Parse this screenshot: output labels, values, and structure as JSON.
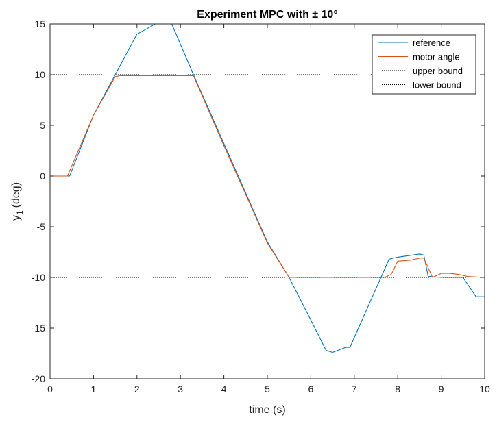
{
  "chart_data": {
    "type": "line",
    "title": "Experiment MPC with ± 10°",
    "xlabel": "time (s)",
    "ylabel_main": "y",
    "ylabel_sub": "1",
    "ylabel_unit": "(deg)",
    "xlim": [
      0,
      10
    ],
    "ylim": [
      -20,
      15
    ],
    "xticks": [
      0,
      1,
      2,
      3,
      4,
      5,
      6,
      7,
      8,
      9,
      10
    ],
    "yticks": [
      -20,
      -15,
      -10,
      -5,
      0,
      5,
      10,
      15
    ],
    "grid": false,
    "legend_position": "top-right",
    "series": [
      {
        "name": "reference",
        "color": "#0072BD",
        "style": "solid",
        "x": [
          0,
          0.45,
          1.0,
          1.5,
          2.0,
          2.3,
          2.5,
          2.8,
          3.3,
          4.0,
          5.0,
          5.5,
          6.0,
          6.35,
          6.5,
          6.8,
          6.9,
          7.8,
          8.0,
          8.5,
          8.6,
          8.7,
          9.0,
          9.3,
          9.5,
          9.8,
          10.0
        ],
        "y": [
          0,
          0,
          6.0,
          10.0,
          14.0,
          14.7,
          15.2,
          15.0,
          10.0,
          3.2,
          -6.5,
          -10.0,
          -14.2,
          -17.2,
          -17.4,
          -16.9,
          -16.9,
          -8.2,
          -8.0,
          -7.7,
          -7.8,
          -9.9,
          -10.0,
          -10.0,
          -10.0,
          -11.9,
          -11.9
        ]
      },
      {
        "name": "motor angle",
        "color": "#D95319",
        "style": "solid",
        "x": [
          0,
          0.4,
          1.0,
          1.5,
          1.6,
          2.0,
          3.0,
          3.3,
          4.0,
          5.0,
          5.5,
          6.0,
          7.0,
          7.7,
          7.85,
          8.0,
          8.3,
          8.5,
          8.6,
          8.8,
          9.0,
          9.2,
          9.4,
          9.6,
          10.0
        ],
        "y": [
          0,
          0,
          6.0,
          9.8,
          9.9,
          9.9,
          9.9,
          9.9,
          3.0,
          -6.6,
          -10.0,
          -10.0,
          -10.0,
          -10.0,
          -9.7,
          -8.4,
          -8.3,
          -8.1,
          -8.1,
          -10.0,
          -9.6,
          -9.6,
          -9.7,
          -9.9,
          -10.0
        ]
      },
      {
        "name": "upper bound",
        "color": "#000000",
        "style": "dotted",
        "x": [
          0,
          10
        ],
        "y": [
          10,
          10
        ]
      },
      {
        "name": "lower bound",
        "color": "#000000",
        "style": "dotted",
        "x": [
          0,
          10
        ],
        "y": [
          -10,
          -10
        ]
      }
    ]
  }
}
